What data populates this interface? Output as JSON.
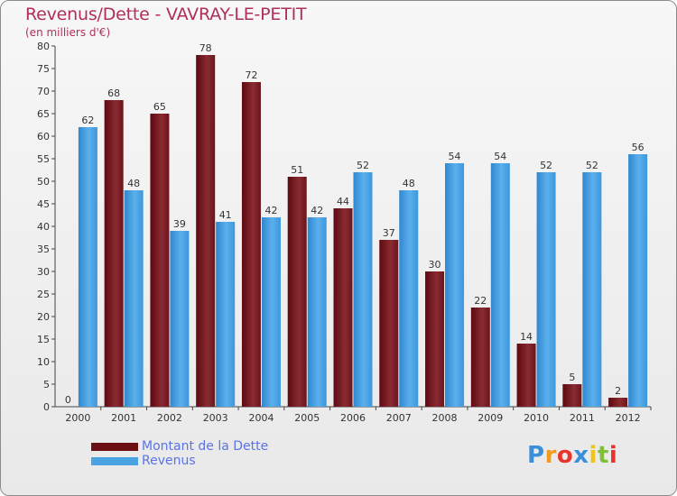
{
  "title": "Revenus/Dette - VAVRAY-LE-PETIT",
  "subtitle": "(en milliers d'€)",
  "chart_data": {
    "type": "bar",
    "title": "Revenus/Dette - VAVRAY-LE-PETIT",
    "subtitle": "(en milliers d'€)",
    "categories": [
      "2000",
      "2001",
      "2002",
      "2003",
      "2004",
      "2005",
      "2006",
      "2007",
      "2008",
      "2009",
      "2010",
      "2011",
      "2012"
    ],
    "ylim": [
      0,
      80
    ],
    "yticks": [
      0,
      5,
      10,
      15,
      20,
      25,
      30,
      35,
      40,
      45,
      50,
      55,
      60,
      65,
      70,
      75,
      80
    ],
    "grid": false,
    "legend_position": "bottom-left",
    "series": [
      {
        "name": "Montant de la Dette",
        "color": "#7a1a24",
        "values": [
          0,
          68,
          65,
          78,
          72,
          51,
          44,
          37,
          30,
          22,
          14,
          5,
          2
        ]
      },
      {
        "name": "Revenus",
        "color": "#4aa3e2",
        "values": [
          62,
          48,
          39,
          41,
          42,
          42,
          52,
          48,
          54,
          54,
          52,
          52,
          56
        ]
      }
    ]
  },
  "legend": {
    "debt_label": "Montant de la Dette",
    "revenue_label": "Revenus",
    "debt_color": "#6b0f14",
    "revenue_color": "#4aa3e2"
  },
  "logo": {
    "text": "Proxiti",
    "letters": [
      "P",
      "r",
      "o",
      "x",
      "i",
      "t",
      "i"
    ],
    "colors": [
      "#3b8fd9",
      "#f29a1b",
      "#e8352c",
      "#3b8fd9",
      "#f2c41b",
      "#7fbf3b",
      "#e8352c"
    ]
  }
}
